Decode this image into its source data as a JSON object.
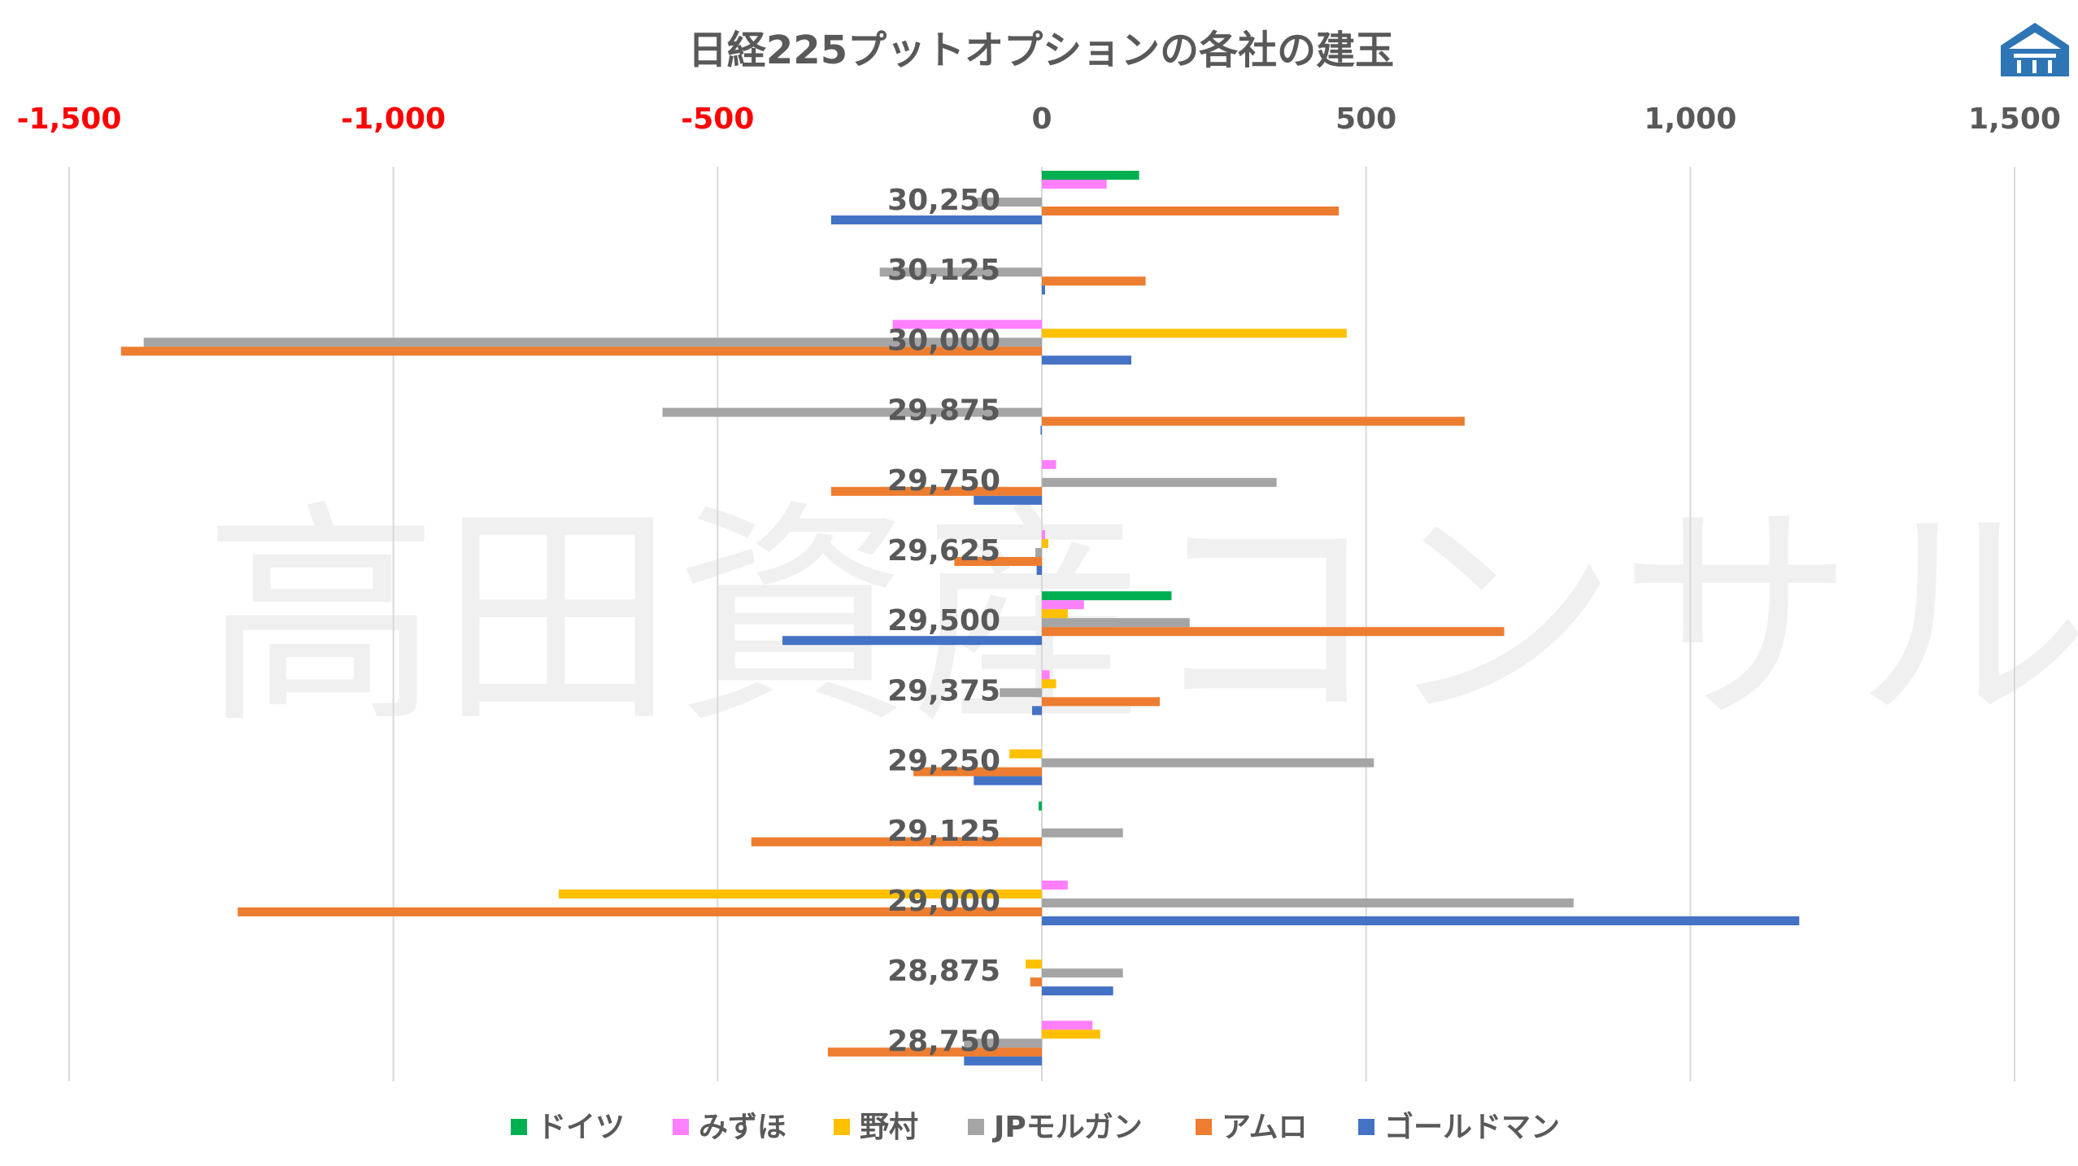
{
  "chart_data": {
    "type": "bar",
    "orientation": "horizontal",
    "title": "日経225プットオプションの各社の建玉",
    "watermark": "高田資産コンサル",
    "categories": [
      "30,250",
      "30,125",
      "30,000",
      "29,875",
      "29,750",
      "29,625",
      "29,500",
      "29,375",
      "29,250",
      "29,125",
      "29,000",
      "28,875",
      "28,750"
    ],
    "xlim": [
      -1500,
      1500
    ],
    "xticks": [
      -1500,
      -1000,
      -500,
      0,
      500,
      1000,
      1500
    ],
    "xtick_labels": [
      "-1,500",
      "-1,000",
      "-500",
      "0",
      "500",
      "1,000",
      "1,500"
    ],
    "xtick_colors": [
      "#ff0000",
      "#ff0000",
      "#ff0000",
      "#595959",
      "#595959",
      "#595959",
      "#595959"
    ],
    "grid": true,
    "legend_position": "bottom",
    "series": [
      {
        "name": "ドイツ",
        "color": "#00b050",
        "values": [
          150,
          0,
          0,
          0,
          0,
          0,
          200,
          0,
          0,
          -5,
          0,
          0,
          0
        ]
      },
      {
        "name": "みずほ",
        "color": "#ff80ff",
        "values": [
          100,
          0,
          -230,
          0,
          22,
          5,
          65,
          12,
          0,
          0,
          40,
          0,
          78
        ]
      },
      {
        "name": "野村",
        "color": "#ffc000",
        "values": [
          0,
          0,
          470,
          0,
          0,
          10,
          40,
          22,
          -50,
          0,
          -745,
          -25,
          90
        ]
      },
      {
        "name": "JPモルガン",
        "color": "#a5a5a5",
        "values": [
          -100,
          -250,
          -1385,
          -585,
          362,
          -10,
          228,
          -65,
          512,
          125,
          820,
          125,
          -120
        ]
      },
      {
        "name": "アムロ",
        "color": "#ed7d31",
        "values": [
          458,
          160,
          -1420,
          652,
          -325,
          -135,
          713,
          182,
          -198,
          -448,
          -1240,
          -18,
          -330
        ]
      },
      {
        "name": "ゴールドマン",
        "color": "#4472c4",
        "values": [
          -325,
          5,
          138,
          -2,
          -105,
          -8,
          -400,
          -15,
          -105,
          0,
          1168,
          110,
          -120
        ]
      }
    ]
  },
  "logo": {
    "name": "brand-logo",
    "color": "#2e75b6"
  }
}
